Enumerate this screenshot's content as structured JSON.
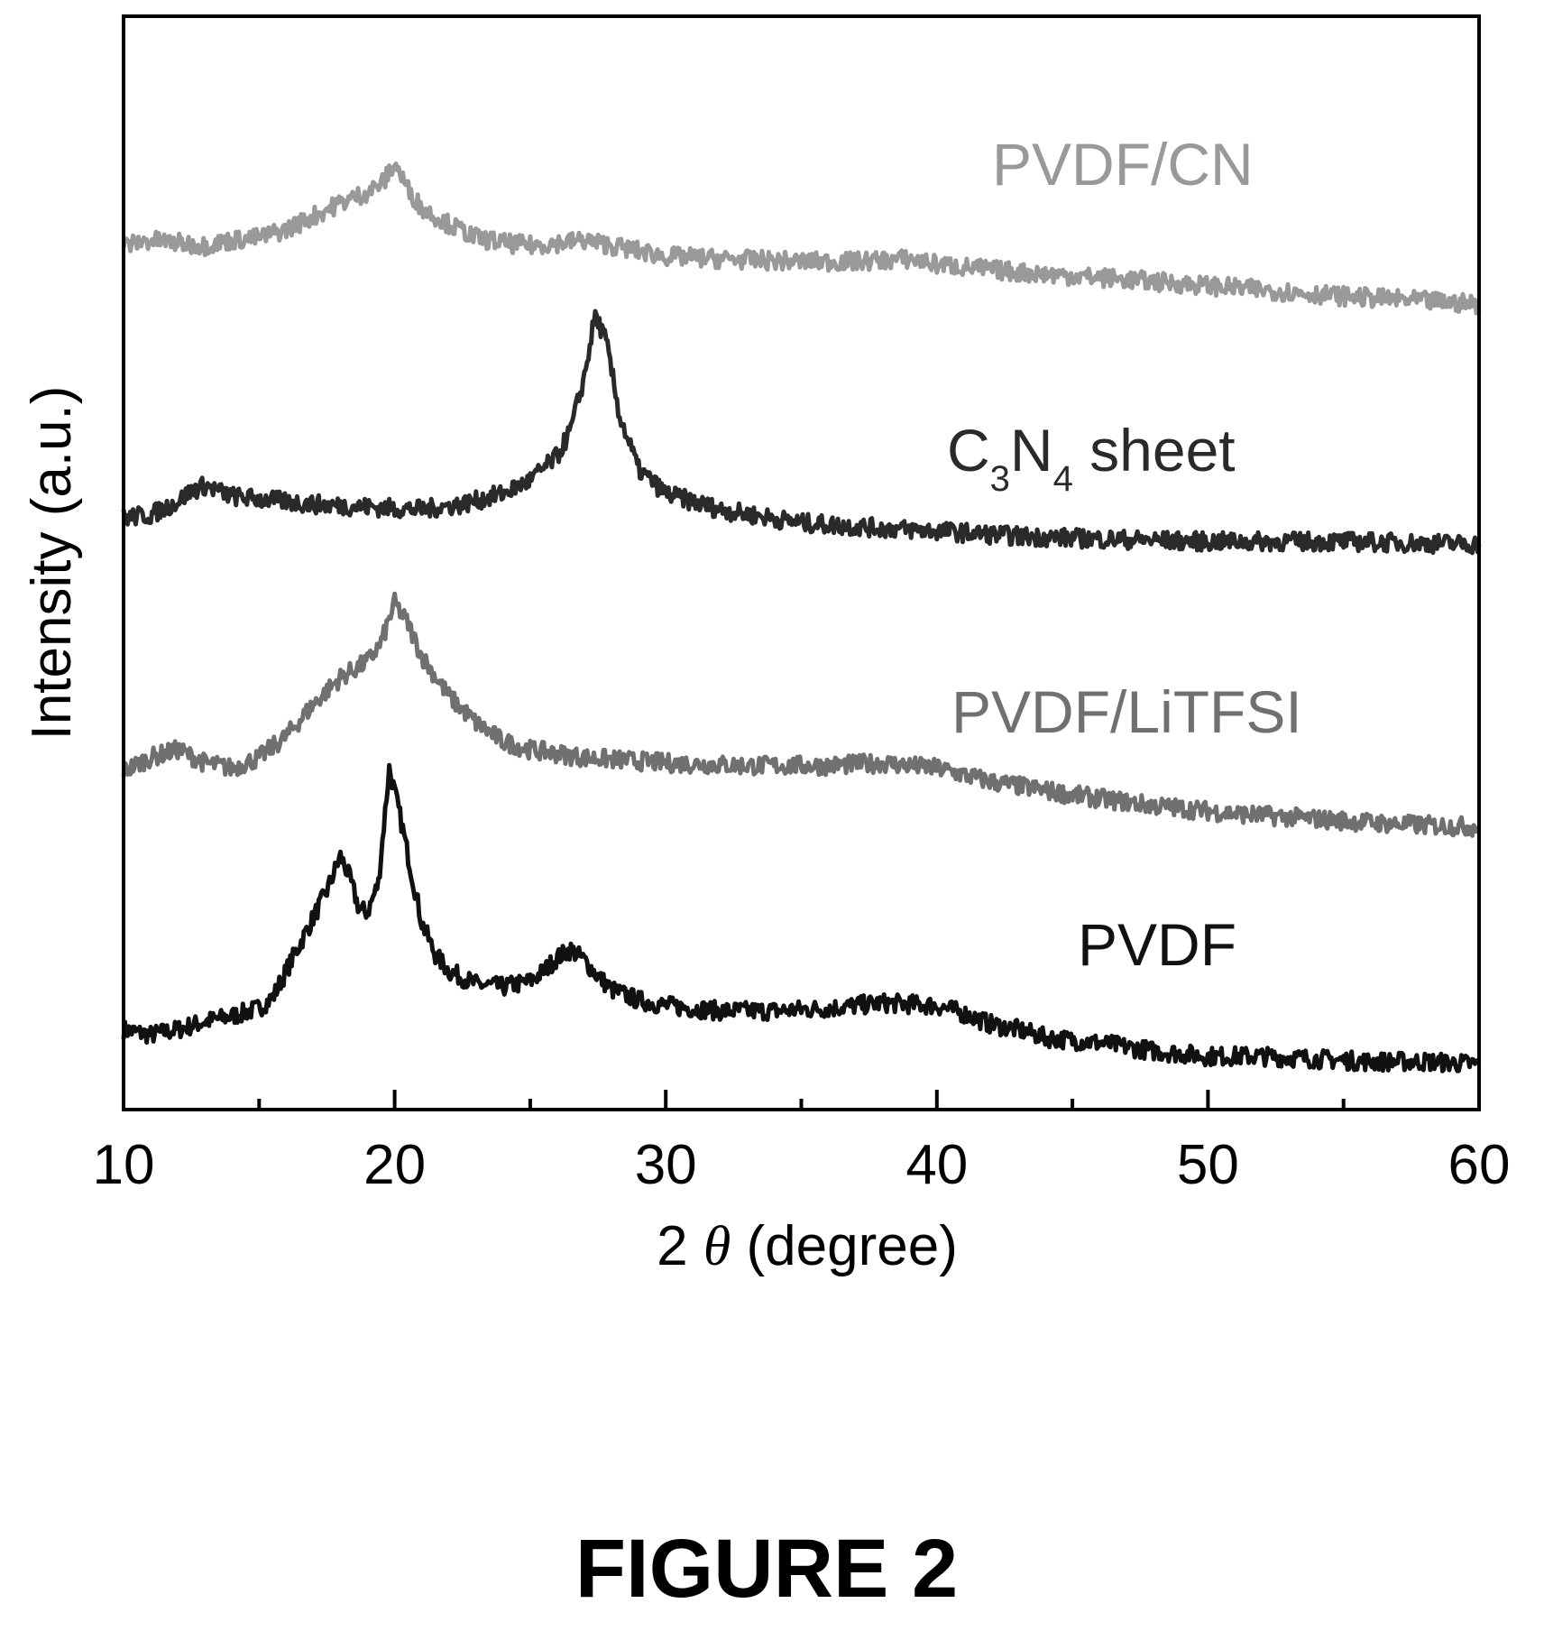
{
  "figure_caption": "FIGURE 2",
  "chart_data": {
    "type": "line",
    "title": "",
    "xlabel": {
      "prefix": "2 ",
      "symbol": "θ",
      "suffix": " (degree)"
    },
    "ylabel": "Intensity (a.u.)",
    "xlim": [
      10,
      60
    ],
    "ylim": [
      0,
      4.1
    ],
    "x_major_ticks": [
      10,
      20,
      30,
      40,
      50,
      60
    ],
    "x_minor_ticks": [
      15,
      25,
      35,
      45,
      55
    ],
    "y_tick_labels": false,
    "grid": false,
    "legend": "inline labels next to each trace",
    "series": [
      {
        "name": "PVDF",
        "label": {
          "main": "PVDF",
          "sub": []
        },
        "color": "#111111",
        "points": [
          [
            10,
            0.3
          ],
          [
            11,
            0.28
          ],
          [
            12,
            0.3
          ],
          [
            13,
            0.33
          ],
          [
            14,
            0.35
          ],
          [
            15,
            0.38
          ],
          [
            15.5,
            0.42
          ],
          [
            16,
            0.52
          ],
          [
            16.5,
            0.62
          ],
          [
            17,
            0.72
          ],
          [
            17.5,
            0.82
          ],
          [
            18,
            0.95
          ],
          [
            18.3,
            0.88
          ],
          [
            18.7,
            0.75
          ],
          [
            19,
            0.74
          ],
          [
            19.4,
            0.85
          ],
          [
            19.8,
            1.28
          ],
          [
            20.2,
            1.1
          ],
          [
            20.6,
            0.9
          ],
          [
            21,
            0.7
          ],
          [
            21.5,
            0.58
          ],
          [
            22,
            0.52
          ],
          [
            23,
            0.47
          ],
          [
            24,
            0.46
          ],
          [
            25,
            0.48
          ],
          [
            25.5,
            0.52
          ],
          [
            26,
            0.57
          ],
          [
            26.5,
            0.6
          ],
          [
            27,
            0.56
          ],
          [
            27.5,
            0.5
          ],
          [
            28,
            0.45
          ],
          [
            29,
            0.41
          ],
          [
            30,
            0.39
          ],
          [
            32,
            0.37
          ],
          [
            34,
            0.37
          ],
          [
            36,
            0.38
          ],
          [
            38,
            0.4
          ],
          [
            40,
            0.39
          ],
          [
            41,
            0.36
          ],
          [
            42,
            0.32
          ],
          [
            43,
            0.3
          ],
          [
            44,
            0.27
          ],
          [
            46,
            0.25
          ],
          [
            48,
            0.22
          ],
          [
            50,
            0.2
          ],
          [
            52,
            0.2
          ],
          [
            54,
            0.19
          ],
          [
            56,
            0.18
          ],
          [
            58,
            0.18
          ],
          [
            60,
            0.17
          ]
        ]
      },
      {
        "name": "PVDF/LiTFSI",
        "label": {
          "main": "PVDF/LiTFSI",
          "sub": []
        },
        "color": "#707070",
        "points": [
          [
            10,
            1.27
          ],
          [
            11,
            1.32
          ],
          [
            12,
            1.35
          ],
          [
            13,
            1.3
          ],
          [
            14,
            1.28
          ],
          [
            15,
            1.32
          ],
          [
            16,
            1.4
          ],
          [
            17,
            1.52
          ],
          [
            18,
            1.62
          ],
          [
            19,
            1.68
          ],
          [
            19.5,
            1.75
          ],
          [
            20,
            1.9
          ],
          [
            20.5,
            1.82
          ],
          [
            21,
            1.7
          ],
          [
            22,
            1.55
          ],
          [
            23,
            1.45
          ],
          [
            24,
            1.38
          ],
          [
            25,
            1.35
          ],
          [
            27,
            1.32
          ],
          [
            30,
            1.3
          ],
          [
            33,
            1.29
          ],
          [
            36,
            1.29
          ],
          [
            38,
            1.3
          ],
          [
            40,
            1.28
          ],
          [
            42,
            1.23
          ],
          [
            45,
            1.18
          ],
          [
            48,
            1.14
          ],
          [
            51,
            1.11
          ],
          [
            54,
            1.09
          ],
          [
            57,
            1.07
          ],
          [
            60,
            1.06
          ]
        ]
      },
      {
        "name": "C3N4 sheet",
        "label": {
          "main": "C",
          "sub": [
            "3",
            "N",
            "4",
            " sheet"
          ]
        },
        "color": "#2a2a2a",
        "points": [
          [
            10,
            2.22
          ],
          [
            11,
            2.23
          ],
          [
            12,
            2.28
          ],
          [
            12.5,
            2.32
          ],
          [
            13,
            2.34
          ],
          [
            14,
            2.3
          ],
          [
            15,
            2.29
          ],
          [
            17,
            2.27
          ],
          [
            19,
            2.26
          ],
          [
            21,
            2.25
          ],
          [
            22.5,
            2.27
          ],
          [
            24,
            2.31
          ],
          [
            25,
            2.36
          ],
          [
            26,
            2.45
          ],
          [
            26.5,
            2.55
          ],
          [
            27,
            2.75
          ],
          [
            27.4,
            2.98
          ],
          [
            27.8,
            2.88
          ],
          [
            28.3,
            2.6
          ],
          [
            29,
            2.4
          ],
          [
            30,
            2.31
          ],
          [
            32,
            2.25
          ],
          [
            35,
            2.2
          ],
          [
            38,
            2.18
          ],
          [
            40,
            2.17
          ],
          [
            43,
            2.15
          ],
          [
            46,
            2.14
          ],
          [
            50,
            2.13
          ],
          [
            55,
            2.13
          ],
          [
            60,
            2.12
          ]
        ]
      },
      {
        "name": "PVDF/CN",
        "label": {
          "main": "PVDF/CN",
          "sub": []
        },
        "color": "#999999",
        "points": [
          [
            10,
            3.24
          ],
          [
            11,
            3.26
          ],
          [
            12,
            3.25
          ],
          [
            13,
            3.24
          ],
          [
            14,
            3.26
          ],
          [
            15,
            3.27
          ],
          [
            16,
            3.3
          ],
          [
            17,
            3.35
          ],
          [
            18,
            3.4
          ],
          [
            19,
            3.44
          ],
          [
            19.6,
            3.48
          ],
          [
            20,
            3.55
          ],
          [
            20.5,
            3.45
          ],
          [
            21,
            3.38
          ],
          [
            22,
            3.32
          ],
          [
            23,
            3.27
          ],
          [
            24,
            3.25
          ],
          [
            25,
            3.24
          ],
          [
            26,
            3.25
          ],
          [
            27,
            3.26
          ],
          [
            28,
            3.24
          ],
          [
            30,
            3.2
          ],
          [
            32,
            3.19
          ],
          [
            35,
            3.18
          ],
          [
            37,
            3.18
          ],
          [
            39,
            3.19
          ],
          [
            40,
            3.17
          ],
          [
            43,
            3.14
          ],
          [
            46,
            3.12
          ],
          [
            50,
            3.09
          ],
          [
            55,
            3.05
          ],
          [
            60,
            3.02
          ]
        ]
      }
    ]
  }
}
